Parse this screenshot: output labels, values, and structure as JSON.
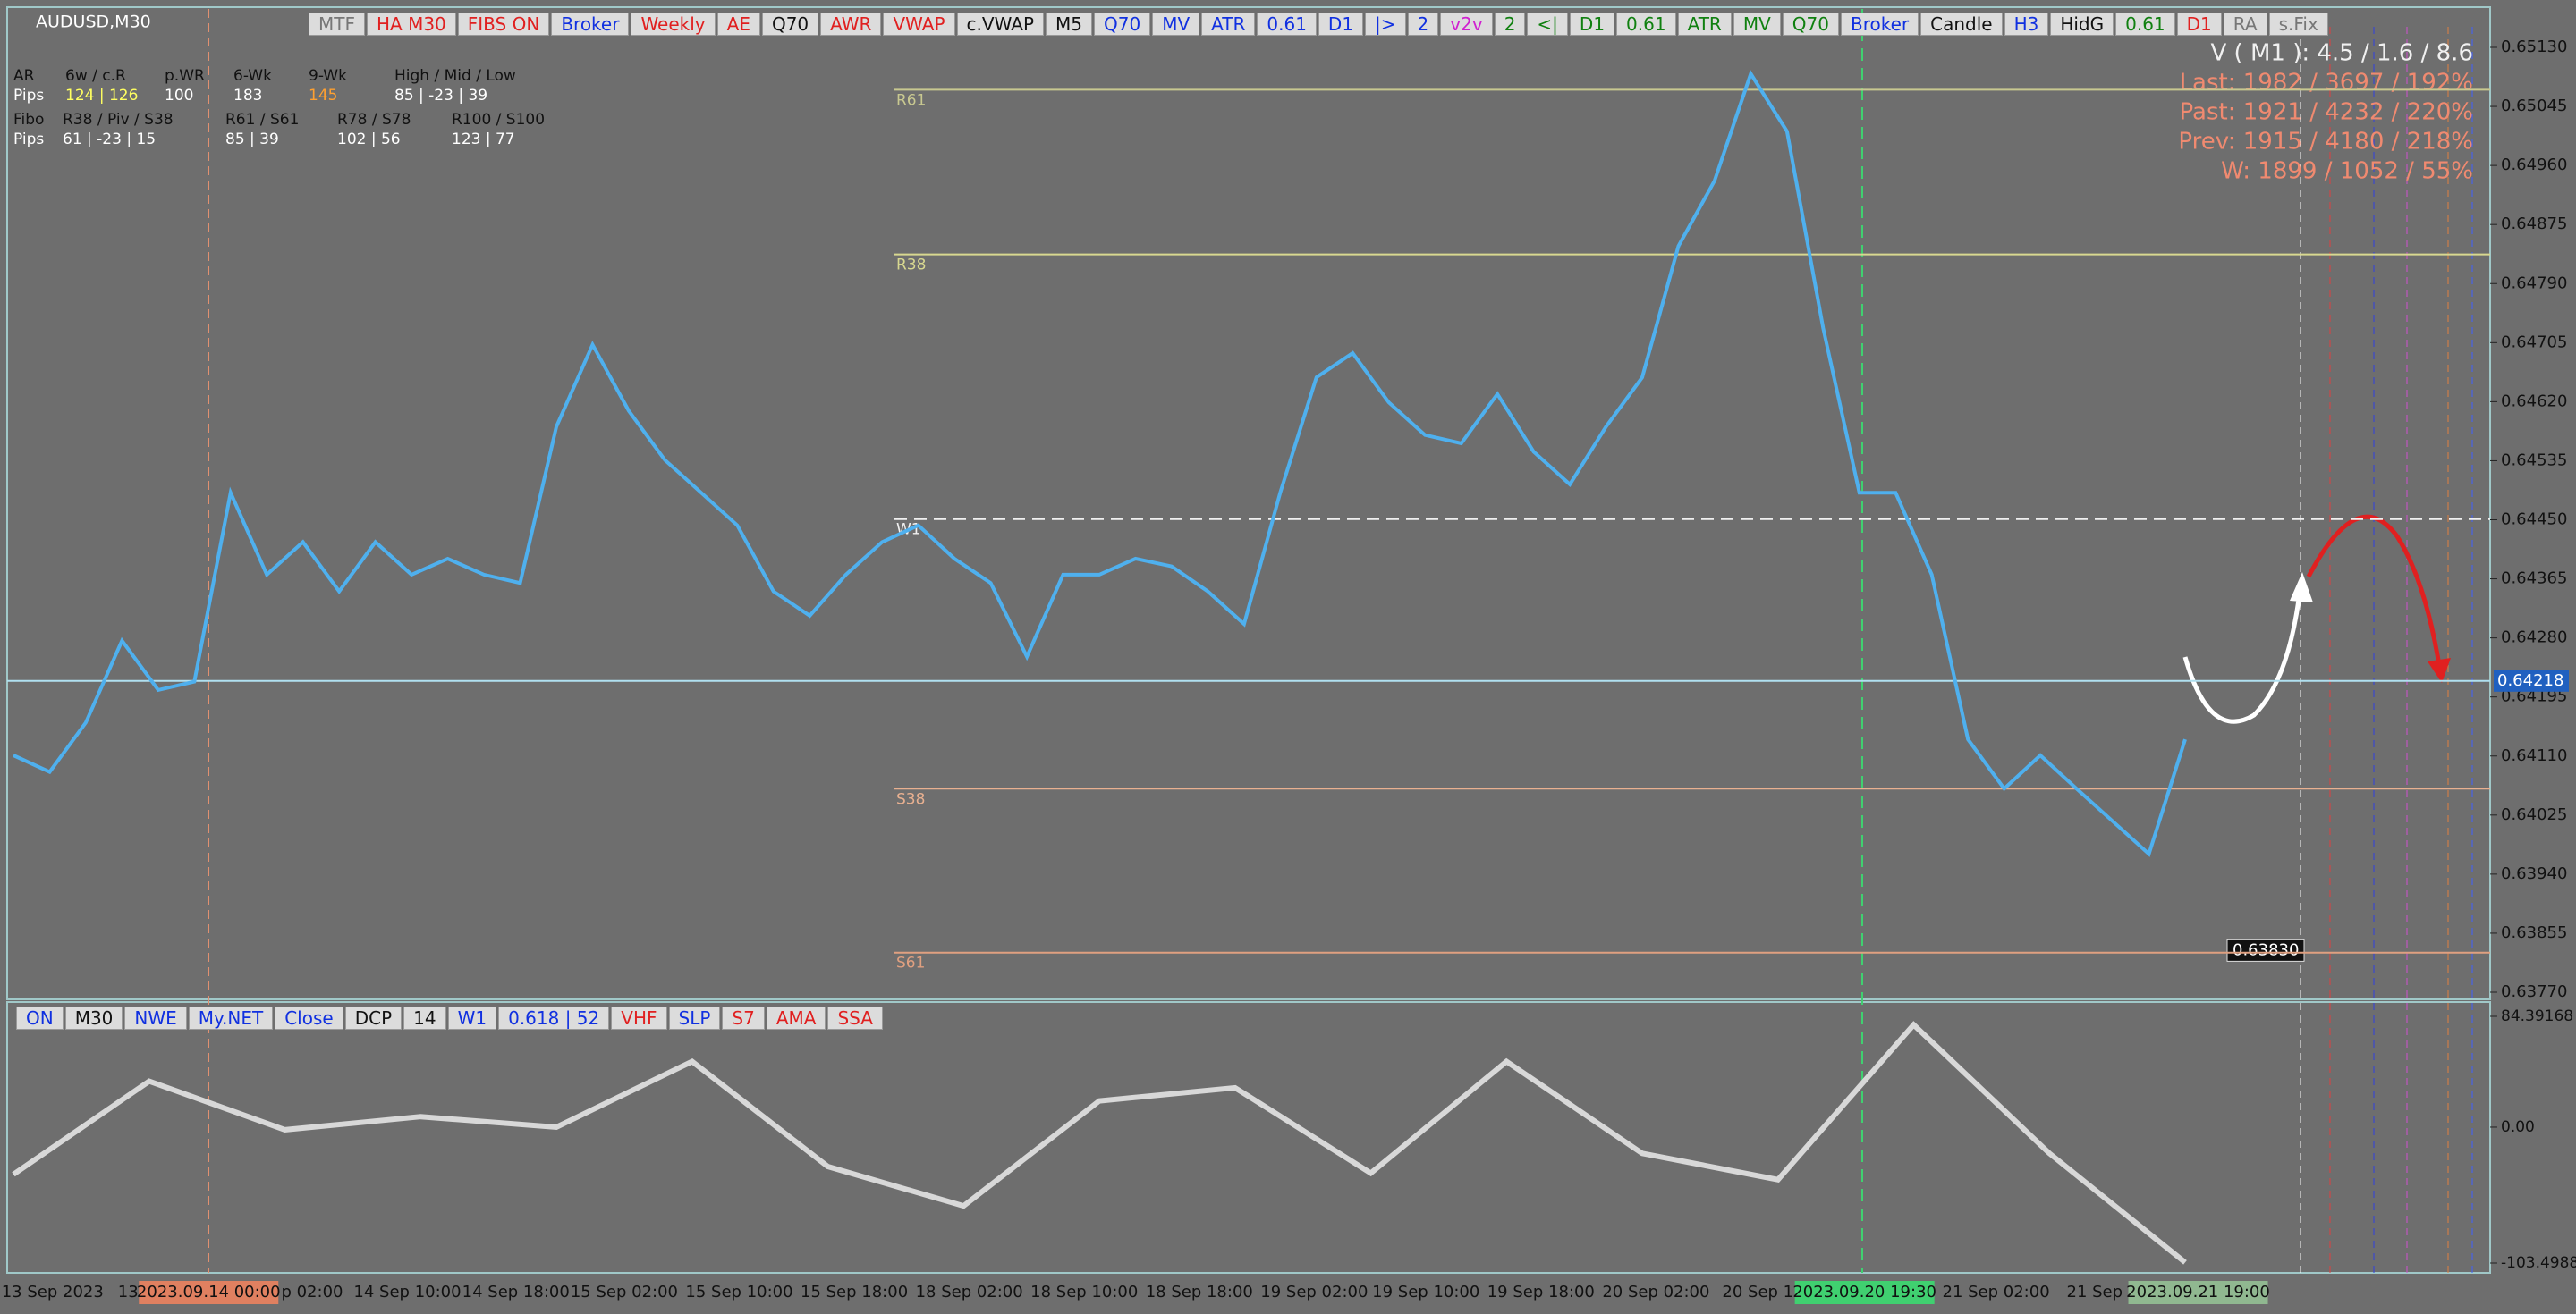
{
  "symbol": "AUDUSD,M30",
  "toolbar": [
    {
      "label": "MTF",
      "color": "#777777"
    },
    {
      "label": "HA M30",
      "color": "#e02020"
    },
    {
      "label": "FIBS ON",
      "color": "#e02020"
    },
    {
      "label": "Broker",
      "color": "#1030e0"
    },
    {
      "label": "Weekly",
      "color": "#e02020"
    },
    {
      "label": "AE",
      "color": "#e02020"
    },
    {
      "label": "Q70",
      "color": "#111111"
    },
    {
      "label": "AWR",
      "color": "#e02020"
    },
    {
      "label": "VWAP",
      "color": "#e02020"
    },
    {
      "label": "c.VWAP",
      "color": "#111111"
    },
    {
      "label": "M5",
      "color": "#111111"
    },
    {
      "label": "Q70",
      "color": "#1030e0"
    },
    {
      "label": "MV",
      "color": "#1030e0"
    },
    {
      "label": "ATR",
      "color": "#1030e0"
    },
    {
      "label": "0.61",
      "color": "#1030e0"
    },
    {
      "label": "D1",
      "color": "#1030e0"
    },
    {
      "label": "|>",
      "color": "#1030e0"
    },
    {
      "label": "2",
      "color": "#1030e0"
    },
    {
      "label": "v2v",
      "color": "#d020d0"
    },
    {
      "label": "2",
      "color": "#108010"
    },
    {
      "label": "<|",
      "color": "#108010"
    },
    {
      "label": "D1",
      "color": "#108010"
    },
    {
      "label": "0.61",
      "color": "#108010"
    },
    {
      "label": "ATR",
      "color": "#108010"
    },
    {
      "label": "MV",
      "color": "#108010"
    },
    {
      "label": "Q70",
      "color": "#108010"
    },
    {
      "label": "Broker",
      "color": "#1030e0"
    },
    {
      "label": "Candle",
      "color": "#111111"
    },
    {
      "label": "H3",
      "color": "#1030e0"
    },
    {
      "label": "HidG",
      "color": "#111111"
    },
    {
      "label": "0.61",
      "color": "#108010"
    },
    {
      "label": "D1",
      "color": "#e02020"
    },
    {
      "label": "RA",
      "color": "#777777"
    },
    {
      "label": "s.Fix",
      "color": "#777777"
    }
  ],
  "bottom_toolbar": [
    {
      "label": "ON",
      "color": "#1030e0"
    },
    {
      "label": "M30",
      "color": "#111111"
    },
    {
      "label": "NWE",
      "color": "#1030e0"
    },
    {
      "label": "My.NET",
      "color": "#1030e0"
    },
    {
      "label": "Close",
      "color": "#1030e0"
    },
    {
      "label": "DCP",
      "color": "#111111"
    },
    {
      "label": "14",
      "color": "#111111"
    },
    {
      "label": "W1",
      "color": "#1030e0"
    },
    {
      "label": "0.618 | 52",
      "color": "#1030e0"
    },
    {
      "label": "VHF",
      "color": "#e02020"
    },
    {
      "label": "SLP",
      "color": "#1030e0"
    },
    {
      "label": "S7",
      "color": "#e02020"
    },
    {
      "label": "AMA",
      "color": "#e02020"
    },
    {
      "label": "SSA",
      "color": "#e02020"
    }
  ],
  "info_panel": [
    [
      "AR",
      "6w / c.R",
      "p.WR",
      "6-Wk",
      "9-Wk",
      "High / Mid / Low"
    ],
    [
      "Pips",
      "124 | 126",
      "100",
      "183",
      "145",
      "85 | -23 | 39"
    ],
    [
      "Fibo",
      "R38 / Piv / S38",
      "R61 / S61",
      "R78 / S78",
      "R100 / S100"
    ],
    [
      "Pips",
      "61 | -23 | 15",
      "85 | 39",
      "102 | 56",
      "123 | 77"
    ]
  ],
  "stats": [
    "V ( M1 ): 4.5 / 1.6 / 8.6",
    "Last: 1982 / 3697 / 192%",
    "Past: 1921 / 4232 / 220%",
    "Prev: 1915 / 4180 / 218%",
    "W: 1899 / 1052 / 55%"
  ],
  "price_axis": {
    "ylim": [
      0.6377,
      0.6513
    ],
    "yticks": [
      {
        "value": 0.6513,
        "label": "0.65130"
      },
      {
        "value": 0.65045,
        "label": "0.65045"
      },
      {
        "value": 0.6496,
        "label": "0.64960"
      },
      {
        "value": 0.64875,
        "label": "0.64875"
      },
      {
        "value": 0.6479,
        "label": "0.64790"
      },
      {
        "value": 0.64705,
        "label": "0.64705"
      },
      {
        "value": 0.6462,
        "label": "0.64620"
      },
      {
        "value": 0.64535,
        "label": "0.64535"
      },
      {
        "value": 0.6445,
        "label": "0.64450"
      },
      {
        "value": 0.64365,
        "label": "0.64365"
      },
      {
        "value": 0.6428,
        "label": "0.64280"
      },
      {
        "value": 0.64195,
        "label": "0.64195"
      },
      {
        "value": 0.6411,
        "label": "0.64110"
      },
      {
        "value": 0.64025,
        "label": "0.64025"
      },
      {
        "value": 0.6394,
        "label": "0.63940"
      },
      {
        "value": 0.63855,
        "label": "0.63855"
      },
      {
        "value": 0.6377,
        "label": "0.63770"
      }
    ],
    "markers": [
      {
        "value": 0.64218,
        "label": "0.64218"
      },
      {
        "value": 0.6383,
        "label": "0.63830"
      }
    ]
  },
  "levels": [
    {
      "label": "R61",
      "value": 0.65069,
      "color": "#c8c890"
    },
    {
      "label": "R38",
      "value": 0.64832,
      "color": "#d8d890"
    },
    {
      "label": "W1",
      "value": 0.64451,
      "color": "#f0f0f0"
    },
    {
      "label": "S38",
      "value": 0.64063,
      "color": "#e8b090"
    },
    {
      "label": "S61",
      "value": 0.63827,
      "color": "#e0a080"
    }
  ],
  "closes": [
    0.64111,
    0.64087,
    0.64158,
    0.64276,
    0.64205,
    0.64217,
    0.64489,
    0.64371,
    0.64418,
    0.64347,
    0.64418,
    0.64371,
    0.64394,
    0.64371,
    0.64359,
    0.64584,
    0.64702,
    0.64607,
    0.64536,
    0.64489,
    0.64442,
    0.64347,
    0.64312,
    0.64371,
    0.64418,
    0.64442,
    0.64394,
    0.64359,
    0.64253,
    0.64371,
    0.64371,
    0.64394,
    0.64383,
    0.64347,
    0.643,
    0.64489,
    0.64655,
    0.6469,
    0.64619,
    0.64572,
    0.6456,
    0.64631,
    0.64548,
    0.64501,
    0.64584,
    0.64655,
    0.64844,
    0.64938,
    0.65092,
    0.65009,
    0.64726,
    0.64489,
    0.64489,
    0.64371,
    0.64134,
    0.64063,
    0.64111,
    0.64063,
    0.64016,
    0.63969,
    0.64134
  ],
  "oscillator": {
    "ylim": [
      -103.4988,
      84.39168
    ],
    "yticks": [
      {
        "value": 84.39168,
        "label": "84.39168"
      },
      {
        "value": 0,
        "label": "0.00"
      },
      {
        "value": -103.4988,
        "label": "-103.4988"
      }
    ],
    "values": [
      -36,
      35,
      -2,
      8,
      0,
      50,
      -30,
      -60,
      20,
      30,
      -35,
      50,
      -20,
      -40,
      78,
      -20,
      -103
    ]
  },
  "time_axis": [
    {
      "label": "13 Sep 2023"
    },
    {
      "label": "13"
    },
    {
      "label": "2023.09.14 00:00",
      "highlight": "#e08060"
    },
    {
      "label": "p 02:00"
    },
    {
      "label": "14 Sep 10:00"
    },
    {
      "label": "14 Sep 18:00"
    },
    {
      "label": "15 Sep 02:00"
    },
    {
      "label": "15 Sep 10:00"
    },
    {
      "label": "15 Sep 18:00"
    },
    {
      "label": "18 Sep 02:00"
    },
    {
      "label": "18 Sep 10:00"
    },
    {
      "label": "18 Sep 18:00"
    },
    {
      "label": "19 Sep 02:00"
    },
    {
      "label": "19 Sep 10:00"
    },
    {
      "label": "19 Sep 18:00"
    },
    {
      "label": "20 Sep 02:00"
    },
    {
      "label": "20 Sep 1"
    },
    {
      "label": "2023.09.20 19:30",
      "highlight": "#40d070"
    },
    {
      "label": "21 Sep 02:00"
    },
    {
      "label": "21 Sep"
    },
    {
      "label": "2023.09.21 19:00",
      "highlight": "#90b890"
    }
  ]
}
